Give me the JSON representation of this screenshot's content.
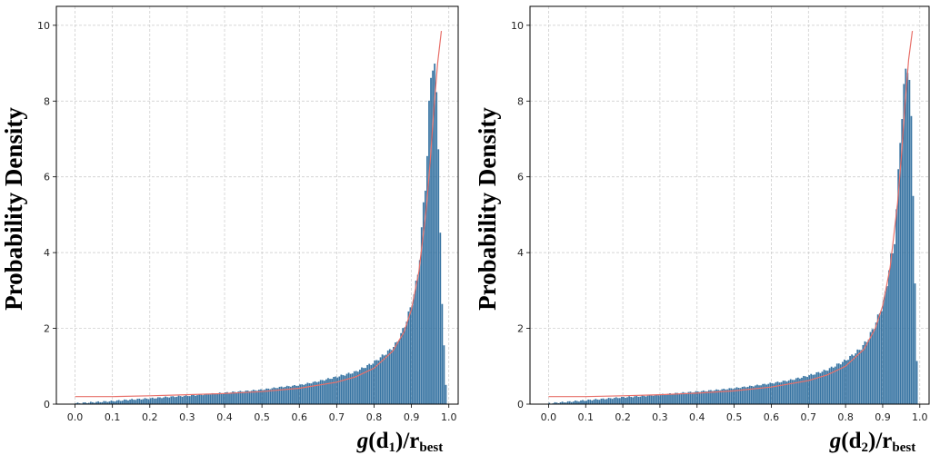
{
  "chart_data": [
    {
      "type": "bar",
      "subtype": "histogram-with-fit",
      "ylabel": "Probability Density",
      "xlabel": {
        "g": "g",
        "open": "(",
        "d": "d",
        "sub": "1",
        "close": ")/",
        "r": "r",
        "rsub": "best"
      },
      "xlim": [
        -0.05,
        1.025
      ],
      "ylim": [
        0,
        10.5
      ],
      "xticks": [
        "0.0",
        "0.1",
        "0.2",
        "0.3",
        "0.4",
        "0.5",
        "0.6",
        "0.7",
        "0.8",
        "0.9",
        "1.0"
      ],
      "yticks": [
        "0",
        "2",
        "4",
        "6",
        "8",
        "10"
      ],
      "grid": true,
      "bar_color": "#2e6e9e",
      "fit_color": "#e8706a",
      "histogram_points": [
        [
          0.0,
          0.02
        ],
        [
          0.05,
          0.05
        ],
        [
          0.1,
          0.08
        ],
        [
          0.15,
          0.12
        ],
        [
          0.2,
          0.15
        ],
        [
          0.25,
          0.19
        ],
        [
          0.3,
          0.22
        ],
        [
          0.35,
          0.26
        ],
        [
          0.4,
          0.3
        ],
        [
          0.45,
          0.34
        ],
        [
          0.5,
          0.38
        ],
        [
          0.55,
          0.45
        ],
        [
          0.6,
          0.5
        ],
        [
          0.65,
          0.6
        ],
        [
          0.7,
          0.72
        ],
        [
          0.75,
          0.85
        ],
        [
          0.8,
          1.1
        ],
        [
          0.82,
          1.25
        ],
        [
          0.84,
          1.4
        ],
        [
          0.86,
          1.6
        ],
        [
          0.88,
          2.0
        ],
        [
          0.9,
          2.6
        ],
        [
          0.91,
          3.0
        ],
        [
          0.92,
          3.6
        ],
        [
          0.93,
          4.9
        ],
        [
          0.94,
          6.1
        ],
        [
          0.95,
          8.3
        ],
        [
          0.96,
          9.4
        ],
        [
          0.97,
          7.5
        ],
        [
          0.975,
          6.2
        ],
        [
          0.98,
          3.1
        ],
        [
          0.99,
          1.0
        ],
        [
          0.995,
          0.05
        ]
      ],
      "fit_points": [
        [
          0.0,
          0.2
        ],
        [
          0.1,
          0.2
        ],
        [
          0.2,
          0.22
        ],
        [
          0.3,
          0.25
        ],
        [
          0.4,
          0.28
        ],
        [
          0.5,
          0.33
        ],
        [
          0.6,
          0.42
        ],
        [
          0.7,
          0.58
        ],
        [
          0.75,
          0.72
        ],
        [
          0.8,
          0.95
        ],
        [
          0.85,
          1.4
        ],
        [
          0.88,
          1.9
        ],
        [
          0.9,
          2.5
        ],
        [
          0.92,
          3.5
        ],
        [
          0.94,
          5.2
        ],
        [
          0.95,
          6.4
        ],
        [
          0.96,
          7.8
        ],
        [
          0.97,
          9.0
        ],
        [
          0.98,
          9.85
        ]
      ]
    },
    {
      "type": "bar",
      "subtype": "histogram-with-fit",
      "ylabel": "Probability Density",
      "xlabel": {
        "g": "g",
        "open": "(",
        "d": "d",
        "sub": "2",
        "close": ")/",
        "r": "r",
        "rsub": "best"
      },
      "xlim": [
        -0.05,
        1.025
      ],
      "ylim": [
        0,
        10.5
      ],
      "xticks": [
        "0.0",
        "0.1",
        "0.2",
        "0.3",
        "0.4",
        "0.5",
        "0.6",
        "0.7",
        "0.8",
        "0.9",
        "1.0"
      ],
      "yticks": [
        "0",
        "2",
        "4",
        "6",
        "8",
        "10"
      ],
      "grid": true,
      "bar_color": "#2e6e9e",
      "fit_color": "#e8706a",
      "histogram_points": [
        [
          0.0,
          0.02
        ],
        [
          0.05,
          0.06
        ],
        [
          0.1,
          0.1
        ],
        [
          0.15,
          0.14
        ],
        [
          0.2,
          0.18
        ],
        [
          0.25,
          0.21
        ],
        [
          0.3,
          0.25
        ],
        [
          0.35,
          0.29
        ],
        [
          0.4,
          0.33
        ],
        [
          0.45,
          0.37
        ],
        [
          0.5,
          0.42
        ],
        [
          0.55,
          0.48
        ],
        [
          0.6,
          0.55
        ],
        [
          0.65,
          0.63
        ],
        [
          0.7,
          0.75
        ],
        [
          0.75,
          0.9
        ],
        [
          0.8,
          1.15
        ],
        [
          0.82,
          1.3
        ],
        [
          0.84,
          1.45
        ],
        [
          0.86,
          1.7
        ],
        [
          0.88,
          2.1
        ],
        [
          0.9,
          2.6
        ],
        [
          0.91,
          3.0
        ],
        [
          0.92,
          3.8
        ],
        [
          0.93,
          4.0
        ],
        [
          0.94,
          5.5
        ],
        [
          0.95,
          7.5
        ],
        [
          0.96,
          8.5
        ],
        [
          0.97,
          9.2
        ],
        [
          0.975,
          8.1
        ],
        [
          0.98,
          6.6
        ],
        [
          0.99,
          2.2
        ],
        [
          0.995,
          0.05
        ]
      ],
      "fit_points": [
        [
          0.0,
          0.2
        ],
        [
          0.1,
          0.2
        ],
        [
          0.2,
          0.22
        ],
        [
          0.3,
          0.25
        ],
        [
          0.4,
          0.29
        ],
        [
          0.5,
          0.35
        ],
        [
          0.6,
          0.45
        ],
        [
          0.7,
          0.62
        ],
        [
          0.75,
          0.77
        ],
        [
          0.8,
          1.0
        ],
        [
          0.85,
          1.45
        ],
        [
          0.88,
          2.0
        ],
        [
          0.9,
          2.6
        ],
        [
          0.92,
          3.6
        ],
        [
          0.94,
          5.3
        ],
        [
          0.95,
          6.5
        ],
        [
          0.96,
          7.9
        ],
        [
          0.97,
          9.1
        ],
        [
          0.98,
          9.85
        ]
      ]
    }
  ]
}
